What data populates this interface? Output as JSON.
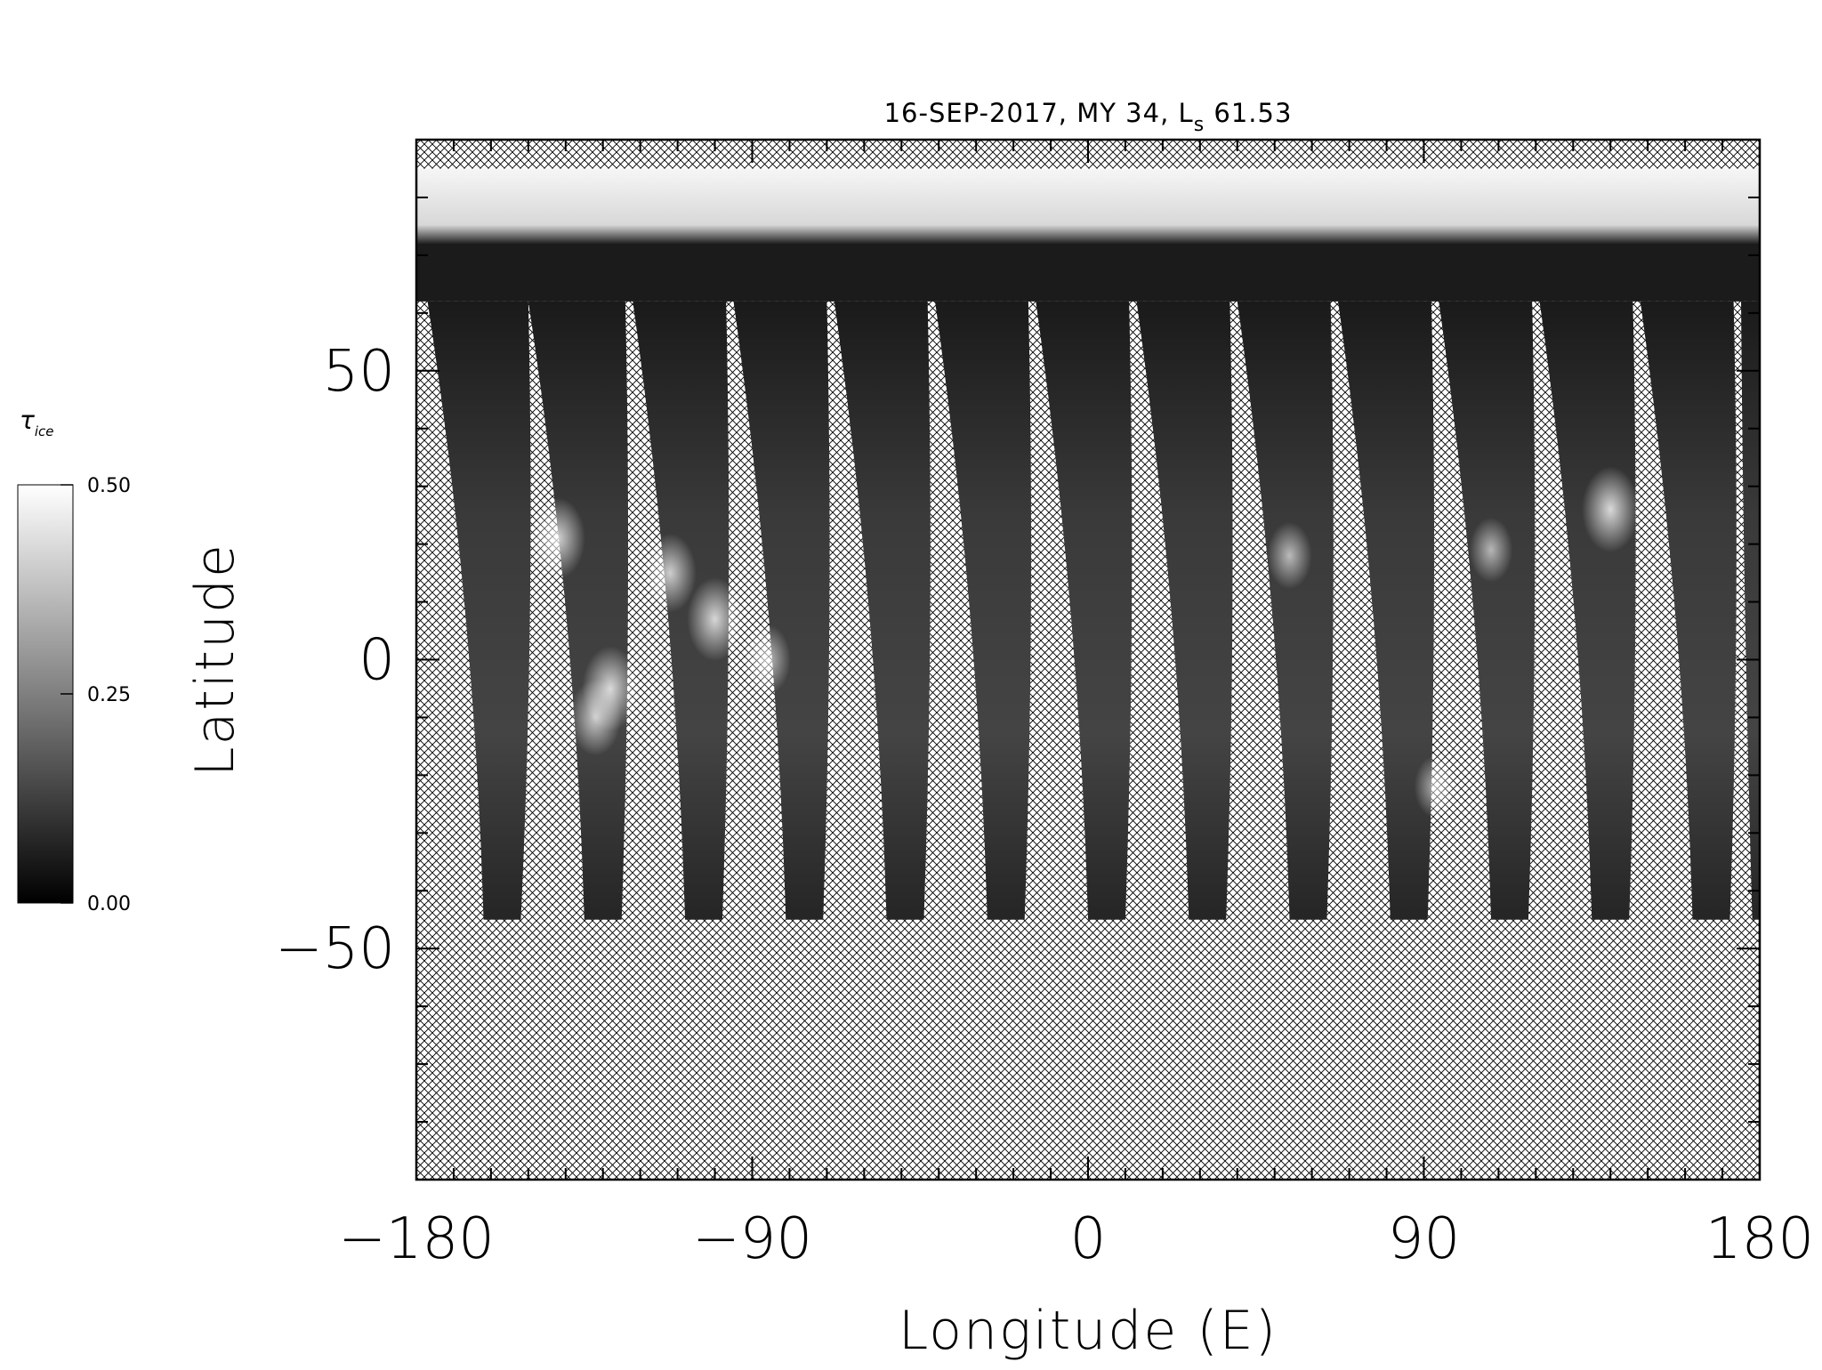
{
  "chart_data": {
    "type": "heatmap",
    "title": "16-SEP-2017, MY 34,  L",
    "title_subscript": "s",
    "title_suffix": " 61.53",
    "xlabel": "Longitude (E)",
    "ylabel": "Latitude",
    "xlim": [
      -180,
      180
    ],
    "ylim": [
      -90,
      90
    ],
    "x_ticks": [
      -180,
      -90,
      0,
      90,
      180
    ],
    "x_tick_labels": [
      "−180",
      "−90",
      "0",
      "90",
      "180"
    ],
    "y_ticks": [
      -50,
      0,
      50
    ],
    "y_tick_labels": [
      "−50",
      "0",
      "50"
    ],
    "x_minor_step": 10,
    "y_minor_step": 10,
    "polar_cap_lat_range": [
      72,
      85
    ],
    "no_data_pattern": "crosshatch",
    "swaths": [
      {
        "lon_top_west": -177,
        "lon_top_east": -150,
        "lat_top": 62,
        "lon_bottom_west": -162,
        "lon_bottom_east": -152,
        "lat_bottom": -45
      },
      {
        "lon_top_west": -150,
        "lon_top_east": -124,
        "lat_top": 62,
        "lon_bottom_west": -135,
        "lon_bottom_east": -125,
        "lat_bottom": -45
      },
      {
        "lon_top_west": -122,
        "lon_top_east": -97,
        "lat_top": 62,
        "lon_bottom_west": -108,
        "lon_bottom_east": -98,
        "lat_bottom": -45
      },
      {
        "lon_top_west": -95,
        "lon_top_east": -70,
        "lat_top": 62,
        "lon_bottom_west": -81,
        "lon_bottom_east": -71,
        "lat_bottom": -45
      },
      {
        "lon_top_west": -68,
        "lon_top_east": -43,
        "lat_top": 62,
        "lon_bottom_west": -54,
        "lon_bottom_east": -44,
        "lat_bottom": -45
      },
      {
        "lon_top_west": -41,
        "lon_top_east": -16,
        "lat_top": 62,
        "lon_bottom_west": -27,
        "lon_bottom_east": -17,
        "lat_bottom": -45
      },
      {
        "lon_top_west": -14,
        "lon_top_east": 11,
        "lat_top": 62,
        "lon_bottom_west": 0,
        "lon_bottom_east": 10,
        "lat_bottom": -45
      },
      {
        "lon_top_west": 13,
        "lon_top_east": 38,
        "lat_top": 62,
        "lon_bottom_west": 27,
        "lon_bottom_east": 37,
        "lat_bottom": -45
      },
      {
        "lon_top_west": 40,
        "lon_top_east": 65,
        "lat_top": 62,
        "lon_bottom_west": 54,
        "lon_bottom_east": 64,
        "lat_bottom": -45
      },
      {
        "lon_top_west": 67,
        "lon_top_east": 92,
        "lat_top": 62,
        "lon_bottom_west": 81,
        "lon_bottom_east": 91,
        "lat_bottom": -45
      },
      {
        "lon_top_west": 94,
        "lon_top_east": 119,
        "lat_top": 62,
        "lon_bottom_west": 108,
        "lon_bottom_east": 118,
        "lat_bottom": -45
      },
      {
        "lon_top_west": 121,
        "lon_top_east": 146,
        "lat_top": 62,
        "lon_bottom_west": 135,
        "lon_bottom_east": 145,
        "lat_bottom": -45
      },
      {
        "lon_top_west": 148,
        "lon_top_east": 173,
        "lat_top": 62,
        "lon_bottom_west": 162,
        "lon_bottom_east": 172,
        "lat_bottom": -45
      },
      {
        "lon_top_west": 175,
        "lon_top_east": 180,
        "lat_top": 62,
        "lon_bottom_west": 178,
        "lon_bottom_east": 180,
        "lat_bottom": -45
      }
    ],
    "ice_clouds": [
      {
        "lon": -142,
        "lat": 21,
        "value": 0.42
      },
      {
        "lon": -128,
        "lat": -5,
        "value": 0.45
      },
      {
        "lon": -132,
        "lat": -10,
        "value": 0.38
      },
      {
        "lon": -112,
        "lat": 15,
        "value": 0.4
      },
      {
        "lon": -100,
        "lat": 7,
        "value": 0.44
      },
      {
        "lon": -86,
        "lat": 0,
        "value": 0.33
      },
      {
        "lon": 54,
        "lat": 18,
        "value": 0.3
      },
      {
        "lon": 108,
        "lat": 19,
        "value": 0.28
      },
      {
        "lon": 140,
        "lat": 26,
        "value": 0.46
      },
      {
        "lon": 93,
        "lat": -22,
        "value": 0.26
      }
    ],
    "colorbar": {
      "label": "τ",
      "label_subscript": "ice",
      "min": 0.0,
      "max": 0.5,
      "ticks": [
        0.0,
        0.25,
        0.5
      ],
      "tick_labels": [
        "0.00",
        "0.25",
        "0.50"
      ],
      "colormap": "gray"
    }
  }
}
